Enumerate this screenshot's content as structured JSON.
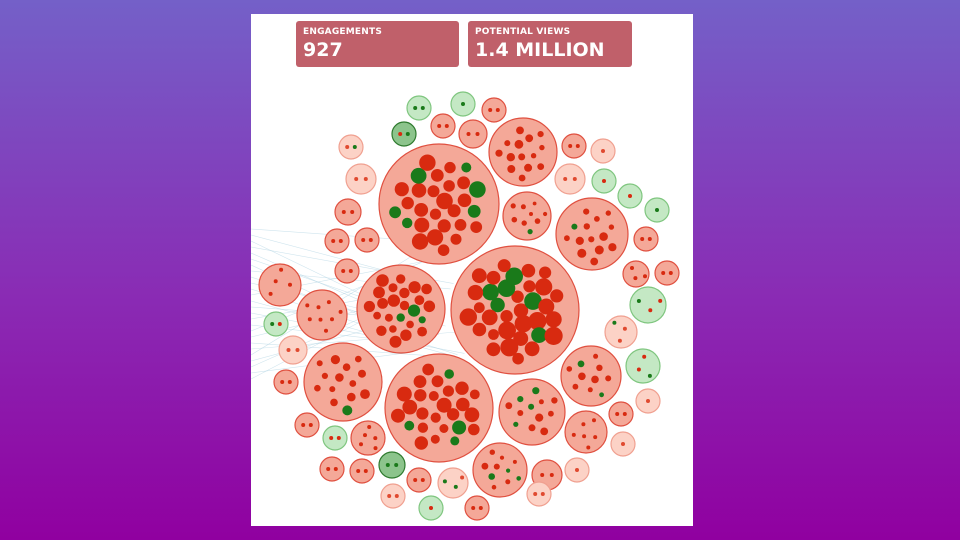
{
  "stats": {
    "engagements_label": "ENGAGEMENTS",
    "engagements_value": "927",
    "views_label": "POTENTIAL VIEWS",
    "views_value": "1.4 MILLION"
  },
  "colors": {
    "background_top": "#7460c8",
    "background_bottom": "#9000a0",
    "card": "#c0606a",
    "negative_fill": "#f4a898",
    "negative_stroke": "#e05040",
    "negative_dot": "#d82a10",
    "positive_fill": "#c4e8c4",
    "positive_stroke": "#7fc67f",
    "positive_dot": "#1a7a1a",
    "link_line": "#a8cfe0"
  }
}
